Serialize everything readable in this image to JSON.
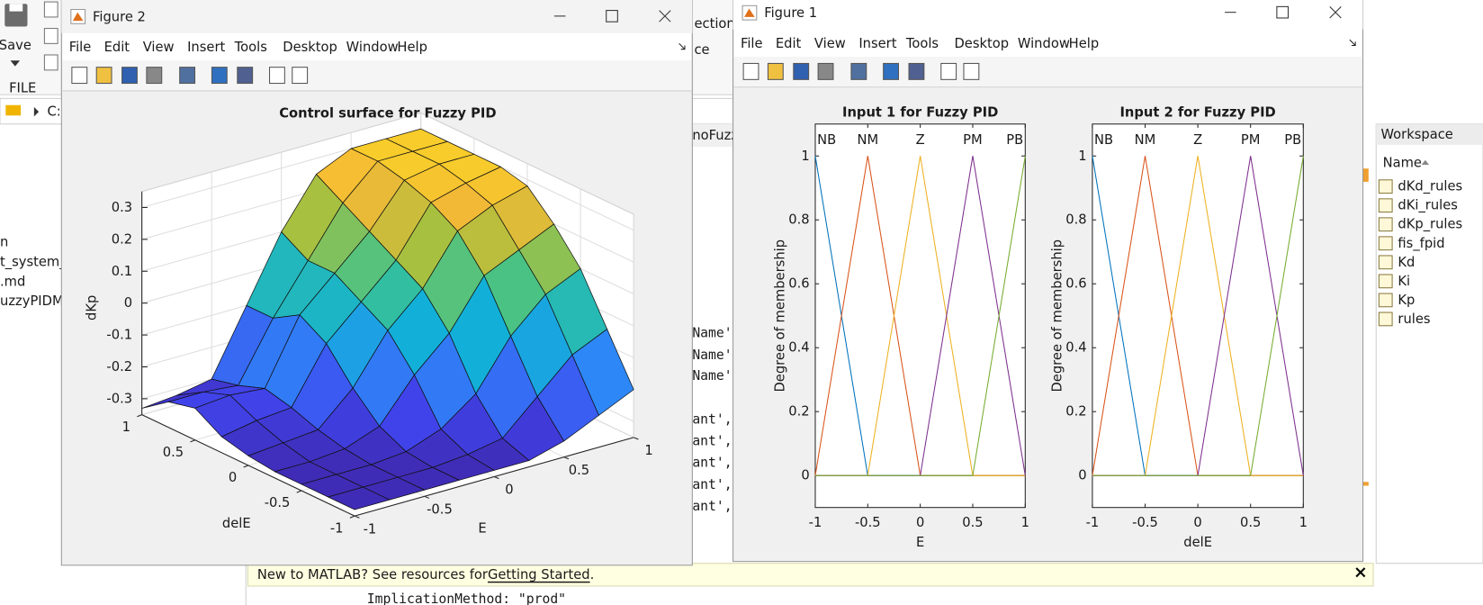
{
  "matlab": {
    "toolstrip": {
      "save": "Save",
      "section": "FILE",
      "fragments": [
        "ection",
        "ce"
      ]
    },
    "path": "C:",
    "files": [
      "n",
      "t_system_m",
      ".md",
      "uzzyPIDMc"
    ],
    "editor_tab": "noFuzzy",
    "code": [
      "Name'",
      "Name'",
      "Name'",
      "ant',",
      "ant',",
      "ant',",
      "ant',",
      "ant',"
    ],
    "workspace": {
      "title": "Workspace",
      "column": "Name",
      "vars": [
        "dKd_rules",
        "dKi_rules",
        "dKp_rules",
        "fis_fpid",
        "Kd",
        "Ki",
        "Kp",
        "rules"
      ]
    },
    "banner": {
      "text": "New to MATLAB? See resources for ",
      "link": "Getting Started",
      "end": "."
    },
    "command": "ImplicationMethod: \"prod\""
  },
  "figure2": {
    "title": "Figure 2",
    "menu": [
      "File",
      "Edit",
      "View",
      "Insert",
      "Tools",
      "Desktop",
      "Window",
      "Help"
    ]
  },
  "figure1": {
    "title": "Figure 1",
    "menu": [
      "File",
      "Edit",
      "View",
      "Insert",
      "Tools",
      "Desktop",
      "Window",
      "Help"
    ]
  },
  "chart_data": [
    {
      "type": "surface",
      "title": "Control surface for Fuzzy PID",
      "x_label": "E",
      "y_label": "delE",
      "z_label": "dKp",
      "x": [
        -1,
        -0.75,
        -0.5,
        -0.25,
        0,
        0.25,
        0.5,
        0.75,
        1
      ],
      "y": [
        -1,
        -0.75,
        -0.5,
        -0.25,
        0,
        0.25,
        0.5,
        0.75,
        1
      ],
      "z": [
        [
          -0.33,
          -0.33,
          -0.33,
          -0.33,
          -0.33,
          -0.33,
          -0.3,
          -0.25,
          -0.2
        ],
        [
          -0.33,
          -0.33,
          -0.33,
          -0.33,
          -0.32,
          -0.3,
          -0.2,
          -0.1,
          -0.05
        ],
        [
          -0.33,
          -0.33,
          -0.33,
          -0.32,
          -0.28,
          -0.2,
          -0.05,
          0.05,
          0.1
        ],
        [
          -0.33,
          -0.33,
          -0.32,
          -0.28,
          -0.15,
          -0.05,
          0.1,
          0.15,
          0.2
        ],
        [
          -0.32,
          -0.31,
          -0.3,
          -0.2,
          -0.05,
          0.05,
          0.2,
          0.25,
          0.28
        ],
        [
          -0.3,
          -0.28,
          -0.27,
          -0.1,
          0,
          0.1,
          0.25,
          0.28,
          0.3
        ],
        [
          -0.25,
          -0.24,
          -0.25,
          -0.05,
          0.05,
          0.15,
          0.28,
          0.3,
          0.3
        ],
        [
          -0.27,
          -0.27,
          -0.28,
          -0.1,
          0.05,
          0.2,
          0.3,
          0.3,
          0.3
        ],
        [
          -0.33,
          -0.32,
          -0.3,
          -0.1,
          0.1,
          0.25,
          0.3,
          0.3,
          0.3
        ]
      ],
      "xlim": [
        -1,
        1
      ],
      "ylim": [
        -1,
        1
      ],
      "zlim": [
        -0.35,
        0.35
      ],
      "xticks": [
        -1,
        -0.5,
        0,
        0.5,
        1
      ],
      "yticks": [
        -1,
        -0.5,
        0,
        0.5,
        1
      ],
      "zticks": [
        -0.3,
        -0.2,
        -0.1,
        0,
        0.1,
        0.2,
        0.3
      ],
      "colormap": "parula",
      "grid": true
    },
    {
      "type": "line",
      "title": "Input 1 for Fuzzy PID",
      "x_label": "E",
      "y_label": "Degree of membership",
      "x": [
        -1,
        -0.5,
        0,
        0.5,
        1
      ],
      "series": [
        {
          "name": "NB",
          "color": "#0072bd",
          "values": [
            1,
            0,
            0,
            0,
            0
          ]
        },
        {
          "name": "NM",
          "color": "#d95319",
          "values": [
            0,
            1,
            0,
            0,
            0
          ]
        },
        {
          "name": "Z",
          "color": "#edb120",
          "values": [
            0,
            0,
            1,
            0,
            0
          ]
        },
        {
          "name": "PM",
          "color": "#7e2f8e",
          "values": [
            0,
            0,
            0,
            1,
            0
          ]
        },
        {
          "name": "PB",
          "color": "#77ac30",
          "values": [
            0,
            0,
            0,
            0,
            1
          ]
        }
      ],
      "xlim": [
        -1,
        1
      ],
      "ylim": [
        -0.1,
        1.1
      ],
      "xticks": [
        -1,
        -0.5,
        0,
        0.5,
        1
      ],
      "yticks": [
        0,
        0.2,
        0.4,
        0.6,
        0.8,
        1
      ]
    },
    {
      "type": "line",
      "title": "Input 2 for Fuzzy PID",
      "x_label": "delE",
      "y_label": "Degree of membership",
      "x": [
        -1,
        -0.5,
        0,
        0.5,
        1
      ],
      "series": [
        {
          "name": "NB",
          "color": "#0072bd",
          "values": [
            1,
            0,
            0,
            0,
            0
          ]
        },
        {
          "name": "NM",
          "color": "#d95319",
          "values": [
            0,
            1,
            0,
            0,
            0
          ]
        },
        {
          "name": "Z",
          "color": "#edb120",
          "values": [
            0,
            0,
            1,
            0,
            0
          ]
        },
        {
          "name": "PM",
          "color": "#7e2f8e",
          "values": [
            0,
            0,
            0,
            1,
            0
          ]
        },
        {
          "name": "PB",
          "color": "#77ac30",
          "values": [
            0,
            0,
            0,
            0,
            1
          ]
        }
      ],
      "xlim": [
        -1,
        1
      ],
      "ylim": [
        -0.1,
        1.1
      ],
      "xticks": [
        -1,
        -0.5,
        0,
        0.5,
        1
      ],
      "yticks": [
        0,
        0.2,
        0.4,
        0.6,
        0.8,
        1
      ]
    }
  ]
}
